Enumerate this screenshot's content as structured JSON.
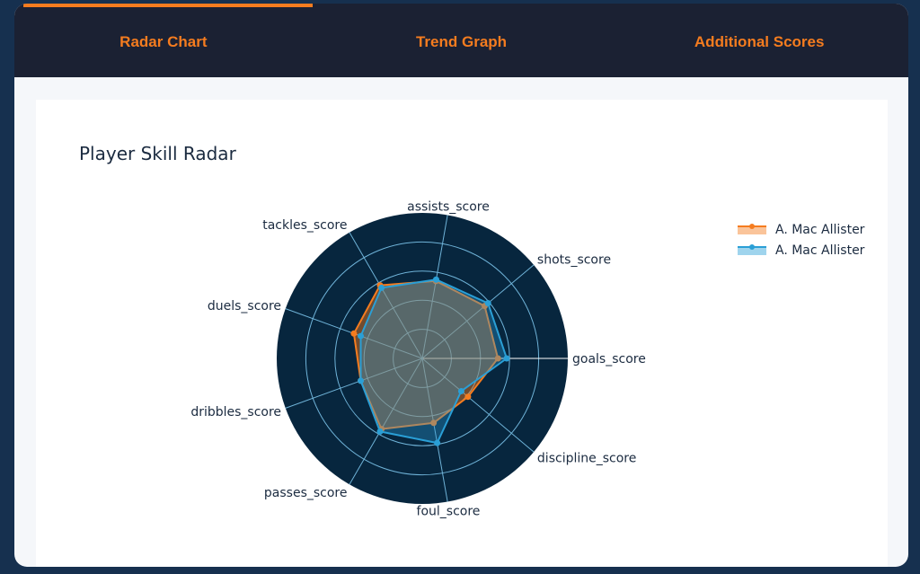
{
  "tabs": [
    {
      "label": "Radar Chart",
      "active": true
    },
    {
      "label": "Trend Graph",
      "active": false
    },
    {
      "label": "Additional Scores",
      "active": false
    }
  ],
  "colors": {
    "accent": "#f57c1f",
    "tab_bar": "#1b2133",
    "polar_bg": "#07263e",
    "grid": "#6fb3d8",
    "series1": "#f57c1f",
    "series2": "#2a9fd6"
  },
  "chart_data": {
    "type": "radar",
    "title": "Player Skill Radar",
    "axes": [
      "goals_score",
      "shots_score",
      "assists_score",
      "tackles_score",
      "duels_score",
      "dribbles_score",
      "passes_score",
      "foul_score",
      "discipline_score"
    ],
    "radial_range": [
      0,
      100
    ],
    "radial_ticks": [
      20,
      40,
      60,
      80
    ],
    "grid": true,
    "legend_position": "top-right",
    "series": [
      {
        "name": "A. Mac Allister",
        "color": "#f57c1f",
        "values": [
          52,
          56,
          54,
          58,
          50,
          45,
          56,
          45,
          41
        ]
      },
      {
        "name": "A. Mac Allister",
        "color": "#2a9fd6",
        "values": [
          58,
          59,
          55,
          56,
          45,
          45,
          58,
          59,
          35
        ]
      }
    ]
  }
}
